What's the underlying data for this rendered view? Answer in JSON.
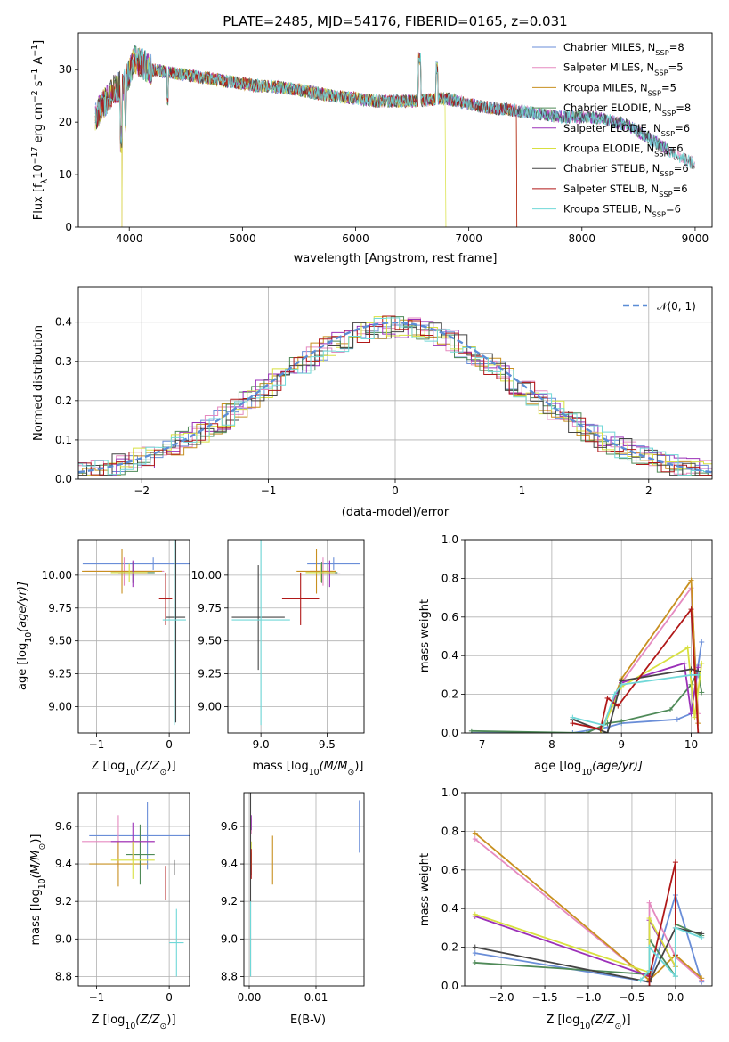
{
  "chart_data": [
    {
      "id": "spectrum",
      "type": "line",
      "title": "PLATE=2485, MJD=54176, FIBERID=0165, z=0.031",
      "xlabel": "wavelength [Angstrom, rest frame]",
      "ylabel": "Flux [f_λ 10^-17 erg cm^-2 s^-1 A^-1]",
      "xlim": [
        3550,
        9150
      ],
      "ylim": [
        0,
        37
      ],
      "xticks": [
        4000,
        5000,
        6000,
        7000,
        8000,
        9000
      ],
      "yticks": [
        0,
        10,
        20,
        30
      ],
      "legend_position": "top-right",
      "legend": [
        {
          "base": "Chabrier MILES, N",
          "sub": "SSP",
          "tail": "=8",
          "color": "#6a8ed8"
        },
        {
          "base": "Salpeter MILES, N",
          "sub": "SSP",
          "tail": "=5",
          "color": "#e58ac0"
        },
        {
          "base": "Kroupa MILES, N",
          "sub": "SSP",
          "tail": "=5",
          "color": "#c89020"
        },
        {
          "base": "Chabrier ELODIE, N",
          "sub": "SSP",
          "tail": "=8",
          "color": "#4f8a58"
        },
        {
          "base": "Salpeter ELODIE, N",
          "sub": "SSP",
          "tail": "=6",
          "color": "#9b30b8"
        },
        {
          "base": "Kroupa ELODIE, N",
          "sub": "SSP",
          "tail": "=6",
          "color": "#d8e040"
        },
        {
          "base": "Chabrier STELIB, N",
          "sub": "SSP",
          "tail": "=6",
          "color": "#444444"
        },
        {
          "base": "Salpeter STELIB, N",
          "sub": "SSP",
          "tail": "=6",
          "color": "#b01818"
        },
        {
          "base": "Kroupa STELIB, N",
          "sub": "SSP",
          "tail": "=6",
          "color": "#70d8d8"
        }
      ],
      "continuum": [
        [
          3700,
          21
        ],
        [
          3850,
          26
        ],
        [
          3950,
          27
        ],
        [
          4050,
          32
        ],
        [
          4200,
          30
        ],
        [
          4500,
          29
        ],
        [
          4800,
          28
        ],
        [
          5100,
          27
        ],
        [
          5400,
          26.5
        ],
        [
          5800,
          25
        ],
        [
          6200,
          24
        ],
        [
          6500,
          24
        ],
        [
          6800,
          24.5
        ],
        [
          7100,
          23
        ],
        [
          7300,
          22.5
        ],
        [
          7500,
          22
        ],
        [
          7800,
          21
        ],
        [
          8100,
          21
        ],
        [
          8400,
          19.5
        ],
        [
          8700,
          15.5
        ],
        [
          8900,
          13
        ],
        [
          9000,
          12
        ]
      ]
    },
    {
      "id": "residuals",
      "type": "histogram",
      "xlabel": "(data-model)/error",
      "ylabel": "Normed distribution",
      "xlim": [
        -2.5,
        2.5
      ],
      "ylim": [
        0,
        0.49
      ],
      "xticks": [
        -2,
        -1,
        0,
        1,
        2
      ],
      "yticks": [
        0.0,
        0.1,
        0.2,
        0.3,
        0.4
      ],
      "reference_label": "𝒩(0, 1)",
      "reference_color": "#5b8dd6",
      "legend_position": "top-right"
    },
    {
      "id": "age-vs-Z",
      "type": "scatter",
      "xlabel_main": "Z [log",
      "xlabel_sub": "10",
      "xlabel_tail": "(Z/Z",
      "xlabel_end": ")]",
      "ylabel_main": "age  [log",
      "ylabel_sub": "10",
      "ylabel_tail": "(age/yr)]",
      "xlim": [
        -1.25,
        0.28
      ],
      "ylim": [
        8.8,
        10.27
      ],
      "xticks": [
        -1,
        0
      ],
      "yticks": [
        9.0,
        9.25,
        9.5,
        9.75,
        10.0
      ],
      "points": [
        {
          "x": -0.22,
          "y": 10.09,
          "xerr": 0.97,
          "yerr": 0.05,
          "color": "#6a8ed8"
        },
        {
          "x": -0.62,
          "y": 10.03,
          "xerr": 0.55,
          "yerr": 0.11,
          "color": "#e58ac0"
        },
        {
          "x": -0.65,
          "y": 10.03,
          "xerr": 0.55,
          "yerr": 0.17,
          "color": "#c89020"
        },
        {
          "x": -0.5,
          "y": 10.02,
          "xerr": 0.3,
          "yerr": 0.08,
          "color": "#4f8a58"
        },
        {
          "x": -0.5,
          "y": 10.01,
          "xerr": 0.2,
          "yerr": 0.1,
          "color": "#9b30b8"
        },
        {
          "x": -0.55,
          "y": 10.02,
          "xerr": 0.25,
          "yerr": 0.07,
          "color": "#d8e040"
        },
        {
          "x": 0.09,
          "y": 9.68,
          "xerr": 0.13,
          "yerr": 0.8,
          "color": "#444444"
        },
        {
          "x": -0.05,
          "y": 9.82,
          "xerr": 0.09,
          "yerr": 0.2,
          "color": "#b01818"
        },
        {
          "x": 0.07,
          "y": 9.66,
          "xerr": 0.16,
          "yerr": 0.8,
          "color": "#70d8d8"
        }
      ]
    },
    {
      "id": "age-vs-mass",
      "type": "scatter",
      "xlabel_main": "mass [log",
      "xlabel_sub": "10",
      "xlabel_tail": "(M/M",
      "xlabel_end": ")]",
      "xlim": [
        8.75,
        9.78
      ],
      "ylim": [
        8.8,
        10.27
      ],
      "xticks": [
        9.0,
        9.5
      ],
      "yticks": [
        9.0,
        9.25,
        9.5,
        9.75,
        10.0
      ],
      "points": [
        {
          "x": 9.55,
          "y": 10.09,
          "xerr": 0.2,
          "yerr": 0.05,
          "color": "#6a8ed8"
        },
        {
          "x": 9.47,
          "y": 10.03,
          "xerr": 0.1,
          "yerr": 0.11,
          "color": "#e58ac0"
        },
        {
          "x": 9.42,
          "y": 10.03,
          "xerr": 0.15,
          "yerr": 0.17,
          "color": "#c89020"
        },
        {
          "x": 9.46,
          "y": 10.02,
          "xerr": 0.12,
          "yerr": 0.08,
          "color": "#4f8a58"
        },
        {
          "x": 9.52,
          "y": 10.01,
          "xerr": 0.08,
          "yerr": 0.1,
          "color": "#9b30b8"
        },
        {
          "x": 9.45,
          "y": 10.02,
          "xerr": 0.11,
          "yerr": 0.07,
          "color": "#d8e040"
        },
        {
          "x": 8.98,
          "y": 9.68,
          "xerr": 0.2,
          "yerr": 0.4,
          "color": "#444444"
        },
        {
          "x": 9.3,
          "y": 9.82,
          "xerr": 0.14,
          "yerr": 0.2,
          "color": "#b01818"
        },
        {
          "x": 9.0,
          "y": 9.66,
          "xerr": 0.22,
          "yerr": 0.8,
          "color": "#70d8d8"
        }
      ]
    },
    {
      "id": "mass-weight-vs-age",
      "type": "line",
      "xlabel_main": "age  [log",
      "xlabel_sub": "10",
      "xlabel_tail": "(age/yr)]",
      "ylabel": "mass weight",
      "xlim": [
        6.75,
        10.3
      ],
      "ylim": [
        0,
        1.0
      ],
      "xticks": [
        7,
        8,
        9,
        10
      ],
      "yticks": [
        0.0,
        0.2,
        0.4,
        0.6,
        0.8,
        1.0
      ],
      "series": [
        {
          "color": "#6a8ed8",
          "points": [
            [
              6.85,
              0.0
            ],
            [
              8.3,
              0.0
            ],
            [
              8.8,
              0.03
            ],
            [
              9.0,
              0.05
            ],
            [
              9.8,
              0.07
            ],
            [
              10.0,
              0.1
            ],
            [
              10.1,
              0.35
            ],
            [
              10.15,
              0.47
            ]
          ]
        },
        {
          "color": "#e58ac0",
          "points": [
            [
              8.7,
              0.0
            ],
            [
              9.0,
              0.26
            ],
            [
              10.0,
              0.75
            ],
            [
              10.1,
              0.1
            ]
          ]
        },
        {
          "color": "#c89020",
          "points": [
            [
              8.7,
              0.0
            ],
            [
              9.0,
              0.28
            ],
            [
              10.0,
              0.79
            ],
            [
              10.1,
              0.05
            ]
          ]
        },
        {
          "color": "#4f8a58",
          "points": [
            [
              6.85,
              0.01
            ],
            [
              8.5,
              0.0
            ],
            [
              8.8,
              0.05
            ],
            [
              9.0,
              0.06
            ],
            [
              9.7,
              0.12
            ],
            [
              10.0,
              0.25
            ],
            [
              10.1,
              0.32
            ],
            [
              10.15,
              0.21
            ]
          ]
        },
        {
          "color": "#9b30b8",
          "points": [
            [
              8.7,
              0.0
            ],
            [
              9.0,
              0.26
            ],
            [
              9.9,
              0.36
            ],
            [
              10.0,
              0.1
            ],
            [
              10.1,
              0.34
            ]
          ]
        },
        {
          "color": "#d8e040",
          "points": [
            [
              8.7,
              0.0
            ],
            [
              9.0,
              0.24
            ],
            [
              9.95,
              0.44
            ],
            [
              10.05,
              0.08
            ],
            [
              10.15,
              0.36
            ]
          ]
        },
        {
          "color": "#444444",
          "points": [
            [
              8.3,
              0.07
            ],
            [
              8.8,
              0.0
            ],
            [
              9.0,
              0.27
            ],
            [
              10.0,
              0.33
            ],
            [
              10.1,
              0.32
            ]
          ]
        },
        {
          "color": "#b01818",
          "points": [
            [
              8.3,
              0.05
            ],
            [
              8.7,
              0.02
            ],
            [
              8.8,
              0.18
            ],
            [
              8.95,
              0.14
            ],
            [
              10.0,
              0.64
            ],
            [
              10.1,
              0.0
            ]
          ]
        },
        {
          "color": "#70d8d8",
          "points": [
            [
              8.3,
              0.08
            ],
            [
              8.75,
              0.04
            ],
            [
              8.9,
              0.2
            ],
            [
              9.0,
              0.25
            ],
            [
              10.0,
              0.3
            ],
            [
              10.1,
              0.3
            ]
          ]
        }
      ]
    },
    {
      "id": "mass-vs-Z",
      "type": "scatter",
      "xlabel_main": "Z [log",
      "xlabel_sub": "10",
      "xlabel_tail": "(Z/Z",
      "xlabel_end": ")]",
      "ylabel_main": "mass [log",
      "ylabel_sub": "10",
      "ylabel_tail": "(M/M",
      "ylabel_end": ")]",
      "xlim": [
        -1.25,
        0.28
      ],
      "ylim": [
        8.75,
        9.78
      ],
      "xticks": [
        -1,
        0
      ],
      "yticks": [
        8.8,
        9.0,
        9.2,
        9.4,
        9.6
      ],
      "points": [
        {
          "x": -0.3,
          "y": 9.55,
          "xerr": 0.8,
          "yerr": 0.18,
          "color": "#6a8ed8"
        },
        {
          "x": -0.7,
          "y": 9.52,
          "xerr": 0.5,
          "yerr": 0.14,
          "color": "#e58ac0"
        },
        {
          "x": -0.7,
          "y": 9.4,
          "xerr": 0.4,
          "yerr": 0.12,
          "color": "#c89020"
        },
        {
          "x": -0.4,
          "y": 9.45,
          "xerr": 0.2,
          "yerr": 0.16,
          "color": "#4f8a58"
        },
        {
          "x": -0.5,
          "y": 9.52,
          "xerr": 0.3,
          "yerr": 0.1,
          "color": "#9b30b8"
        },
        {
          "x": -0.5,
          "y": 9.42,
          "xerr": 0.3,
          "yerr": 0.1,
          "color": "#d8e040"
        },
        {
          "x": 0.07,
          "y": 9.38,
          "xerr": 0.0,
          "yerr": 0.04,
          "color": "#444444"
        },
        {
          "x": -0.05,
          "y": 9.3,
          "xerr": 0.0,
          "yerr": 0.09,
          "color": "#b01818"
        },
        {
          "x": 0.1,
          "y": 8.98,
          "xerr": 0.1,
          "yerr": 0.18,
          "color": "#70d8d8"
        }
      ]
    },
    {
      "id": "mass-vs-ebv",
      "type": "scatter",
      "xlabel": "E(B-V)",
      "xlim": [
        -0.0008,
        0.0172
      ],
      "ylim": [
        8.75,
        9.78
      ],
      "xticks": [
        0.0,
        0.01
      ],
      "yticks": [
        8.8,
        9.0,
        9.2,
        9.4,
        9.6
      ],
      "points": [
        {
          "x": 0.0165,
          "y": 9.6,
          "yerr": 0.14,
          "color": "#6a8ed8"
        },
        {
          "x": 0.0003,
          "y": 9.6,
          "yerr": 0.04,
          "color": "#e58ac0"
        },
        {
          "x": 0.0035,
          "y": 9.42,
          "yerr": 0.13,
          "color": "#c89020"
        },
        {
          "x": 0.0003,
          "y": 9.4,
          "yerr": 0.06,
          "color": "#4f8a58"
        },
        {
          "x": 0.0003,
          "y": 9.62,
          "yerr": 0.04,
          "color": "#9b30b8"
        },
        {
          "x": 0.0003,
          "y": 9.45,
          "yerr": 0.07,
          "color": "#d8e040"
        },
        {
          "x": 0.0002,
          "y": 9.3,
          "yerr": 0.5,
          "color": "#444444"
        },
        {
          "x": 0.0003,
          "y": 9.4,
          "yerr": 0.08,
          "color": "#b01818"
        },
        {
          "x": 0.0002,
          "y": 9.0,
          "yerr": 0.2,
          "color": "#70d8d8"
        }
      ]
    },
    {
      "id": "mass-weight-vs-Z",
      "type": "line",
      "xlabel_main": "Z [log",
      "xlabel_sub": "10",
      "xlabel_tail": "(Z/Z",
      "xlabel_end": ")]",
      "ylabel": "mass weight",
      "xlim": [
        -2.42,
        0.42
      ],
      "ylim": [
        0,
        1.0
      ],
      "xticks": [
        -2.0,
        -1.5,
        -1.0,
        -0.5,
        0.0
      ],
      "yticks": [
        0.0,
        0.2,
        0.4,
        0.6,
        0.8,
        1.0
      ],
      "series": [
        {
          "color": "#6a8ed8",
          "points": [
            [
              -2.3,
              0.17
            ],
            [
              -0.3,
              0.02
            ],
            [
              -0.0,
              0.47
            ],
            [
              0.1,
              0.32
            ],
            [
              0.3,
              0.02
            ]
          ]
        },
        {
          "color": "#e58ac0",
          "points": [
            [
              -2.3,
              0.76
            ],
            [
              -0.3,
              0.03
            ],
            [
              -0.3,
              0.43
            ],
            [
              0.0,
              0.15
            ],
            [
              0.3,
              0.03
            ]
          ]
        },
        {
          "color": "#c89020",
          "points": [
            [
              -2.3,
              0.79
            ],
            [
              -0.3,
              0.03
            ],
            [
              0.0,
              0.16
            ],
            [
              0.3,
              0.04
            ]
          ]
        },
        {
          "color": "#4f8a58",
          "points": [
            [
              -2.3,
              0.12
            ],
            [
              -0.3,
              0.06
            ],
            [
              -0.3,
              0.24
            ],
            [
              0.0,
              0.05
            ],
            [
              0.0,
              0.32
            ],
            [
              0.3,
              0.26
            ]
          ]
        },
        {
          "color": "#9b30b8",
          "points": [
            [
              -2.3,
              0.36
            ],
            [
              -0.3,
              0.05
            ],
            [
              -0.3,
              0.34
            ],
            [
              0.0,
              0.1
            ]
          ]
        },
        {
          "color": "#d8e040",
          "points": [
            [
              -2.3,
              0.37
            ],
            [
              -0.3,
              0.07
            ],
            [
              -0.3,
              0.35
            ],
            [
              0.0,
              0.1
            ]
          ]
        },
        {
          "color": "#444444",
          "points": [
            [
              -2.3,
              0.2
            ],
            [
              -0.3,
              0.02
            ],
            [
              0.0,
              0.3
            ],
            [
              0.3,
              0.27
            ]
          ]
        },
        {
          "color": "#b01818",
          "points": [
            [
              -0.3,
              0.0
            ],
            [
              -0.3,
              0.05
            ],
            [
              0.0,
              0.64
            ],
            [
              0.0,
              0.16
            ]
          ]
        },
        {
          "color": "#70d8d8",
          "points": [
            [
              -0.4,
              0.03
            ],
            [
              -0.3,
              0.08
            ],
            [
              -0.3,
              0.2
            ],
            [
              0.0,
              0.05
            ],
            [
              0.0,
              0.3
            ],
            [
              0.3,
              0.25
            ]
          ]
        }
      ]
    }
  ]
}
